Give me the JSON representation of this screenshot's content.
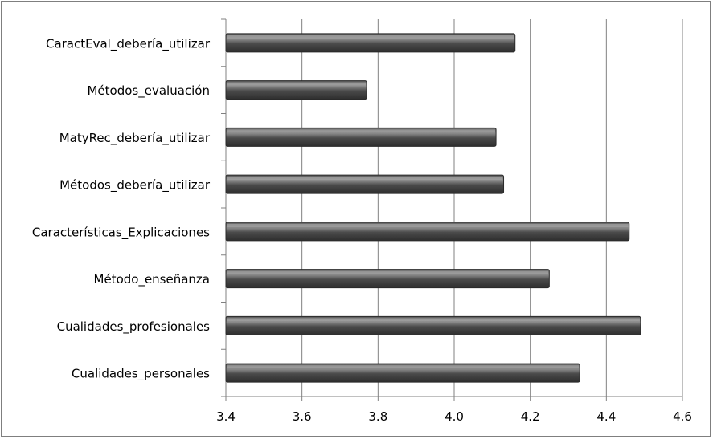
{
  "chart_data": {
    "type": "bar",
    "orientation": "horizontal",
    "categories": [
      "CaractEval_debería_utilizar",
      "Métodos_evaluación",
      "MatyRec_debería_utilizar",
      "Métodos_debería_utilizar",
      "Características_Explicaciones",
      "Método_enseñanza",
      "Cualidades_profesionales",
      "Cualidades_personales"
    ],
    "values": [
      4.16,
      3.77,
      4.11,
      4.13,
      4.46,
      4.25,
      4.49,
      4.33
    ],
    "title": "",
    "xlabel": "",
    "ylabel": "",
    "xlim": [
      3.4,
      4.6
    ],
    "x_ticks": [
      "3.4",
      "3.6",
      "3.8",
      "4.0",
      "4.2",
      "4.4",
      "4.6"
    ],
    "grid": "vertical",
    "legend": "none",
    "colors": {
      "bar_dark": "#3a3a3a",
      "bar_mid": "#6e6e6e",
      "bar_light": "#9a9a9a",
      "gridline": "#808080",
      "axis": "#808080"
    }
  }
}
